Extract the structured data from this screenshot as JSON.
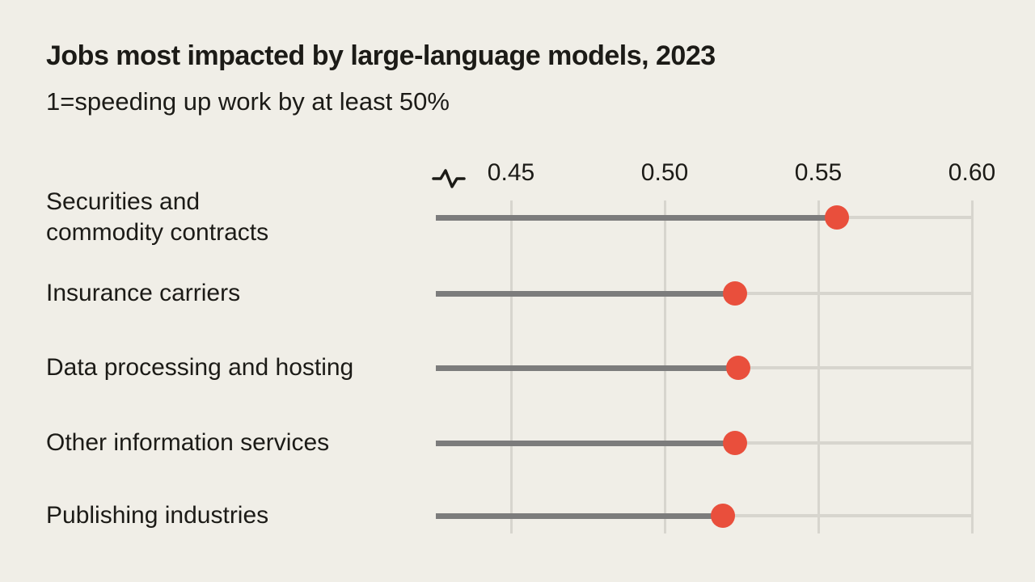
{
  "chart_data": {
    "type": "scatter",
    "variant": "dot-plot-with-tracks",
    "title": "Jobs most impacted by large-language models, 2023",
    "subtitle": "1=speeding up work by at least 50%",
    "categories": [
      "Securities and\ncommodity contracts",
      "Insurance carriers",
      "Data processing and hosting",
      "Other information services",
      "Publishing industries"
    ],
    "values": [
      0.556,
      0.523,
      0.524,
      0.523,
      0.519
    ],
    "x_ticks": [
      0.45,
      0.5,
      0.55,
      0.6
    ],
    "x_tick_labels": [
      "0.45",
      "0.50",
      "0.55",
      "0.60"
    ],
    "xlim_displayed": [
      0.426,
      0.6
    ],
    "axis_break_at_left": true,
    "grid": "vertical-only",
    "legend": "none",
    "colors": {
      "background": "#f0eee7",
      "text": "#1c1b17",
      "dot": "#e94f3c",
      "value_line": "#7c7c7c",
      "track_and_grid": "#d7d5ce"
    }
  }
}
